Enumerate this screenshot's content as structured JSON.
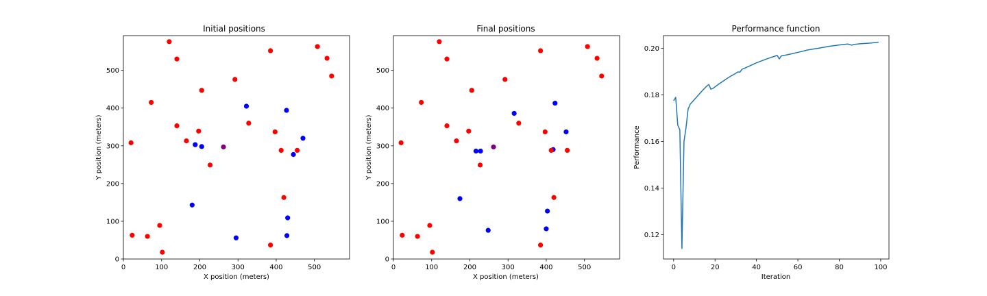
{
  "colors": {
    "sensor": "#ff0000",
    "agent": "#0000ff",
    "overlap": "#800080",
    "line": "#1f77b4"
  },
  "chart_data": [
    {
      "type": "scatter",
      "title": "Initial positions",
      "xlabel": "X position (meters)",
      "ylabel": "Y position (meters)",
      "xlim": [
        0,
        592
      ],
      "ylim": [
        0,
        592
      ],
      "xticks": [
        0,
        100,
        200,
        300,
        400,
        500
      ],
      "yticks": [
        0,
        100,
        200,
        300,
        400,
        500
      ],
      "series": [
        {
          "color": "#ff0000",
          "points": [
            [
              120,
              576
            ],
            [
              140,
              530
            ],
            [
              385,
              552
            ],
            [
              508,
              563
            ],
            [
              533,
              532
            ],
            [
              545,
              485
            ],
            [
              73,
              415
            ],
            [
              205,
              447
            ],
            [
              292,
              476
            ],
            [
              20,
              308
            ],
            [
              140,
              353
            ],
            [
              165,
              313
            ],
            [
              197,
              339
            ],
            [
              328,
              360
            ],
            [
              397,
              337
            ],
            [
              413,
              288
            ],
            [
              455,
              288
            ],
            [
              227,
              249
            ],
            [
              23,
              63
            ],
            [
              63,
              60
            ],
            [
              95,
              89
            ],
            [
              102,
              18
            ],
            [
              420,
              163
            ],
            [
              385,
              37
            ]
          ]
        },
        {
          "color": "#0000ff",
          "points": [
            [
              322,
              405
            ],
            [
              427,
              394
            ],
            [
              470,
              320
            ],
            [
              445,
              277
            ],
            [
              188,
              303
            ],
            [
              205,
              298
            ],
            [
              180,
              143
            ],
            [
              295,
              56
            ],
            [
              430,
              109
            ],
            [
              428,
              62
            ]
          ]
        },
        {
          "color": "#800080",
          "points": [
            [
              262,
              297
            ]
          ]
        }
      ]
    },
    {
      "type": "scatter",
      "title": "Final positions",
      "xlabel": "X position (meters)",
      "ylabel": "Y position (meters)",
      "xlim": [
        0,
        592
      ],
      "ylim": [
        0,
        592
      ],
      "xticks": [
        0,
        100,
        200,
        300,
        400,
        500
      ],
      "yticks": [
        0,
        100,
        200,
        300,
        400,
        500
      ],
      "series": [
        {
          "color": "#0000ff",
          "points": [
            [
              316,
              386
            ],
            [
              423,
              413
            ],
            [
              452,
              337
            ],
            [
              418,
              290
            ],
            [
              216,
              286
            ],
            [
              228,
              286
            ],
            [
              174,
              160
            ],
            [
              248,
              76
            ],
            [
              403,
              127
            ],
            [
              400,
              80
            ]
          ]
        },
        {
          "color": "#ff0000",
          "points": [
            [
              120,
              576
            ],
            [
              140,
              530
            ],
            [
              385,
              552
            ],
            [
              508,
              563
            ],
            [
              533,
              532
            ],
            [
              545,
              485
            ],
            [
              73,
              415
            ],
            [
              205,
              447
            ],
            [
              292,
              476
            ],
            [
              20,
              308
            ],
            [
              140,
              353
            ],
            [
              165,
              313
            ],
            [
              197,
              339
            ],
            [
              328,
              360
            ],
            [
              397,
              337
            ],
            [
              413,
              288
            ],
            [
              455,
              288
            ],
            [
              227,
              249
            ],
            [
              23,
              63
            ],
            [
              63,
              60
            ],
            [
              95,
              89
            ],
            [
              102,
              18
            ],
            [
              420,
              163
            ],
            [
              385,
              37
            ]
          ]
        },
        {
          "color": "#800080",
          "points": [
            [
              262,
              297
            ]
          ]
        }
      ]
    },
    {
      "type": "line",
      "title": "Performance function",
      "xlabel": "Iteration",
      "ylabel": "Performance",
      "xlim": [
        -4.9,
        104
      ],
      "ylim": [
        0.1095,
        0.2055
      ],
      "xticks": [
        0,
        20,
        40,
        60,
        80,
        100
      ],
      "yticks": [
        0.12,
        0.14,
        0.16,
        0.18,
        0.2
      ],
      "ytick_labels": [
        "0.12",
        "0.14",
        "0.16",
        "0.18",
        "0.20"
      ],
      "series": [
        {
          "color": "#1f77b4",
          "x": [
            0,
            1,
            2,
            3,
            4,
            5,
            6,
            7,
            8,
            10,
            12,
            14,
            16,
            17,
            18,
            19,
            20,
            22,
            24,
            26,
            28,
            30,
            31,
            32,
            33,
            35,
            40,
            45,
            50,
            51,
            52,
            55,
            60,
            65,
            70,
            75,
            80,
            84,
            85,
            86,
            87,
            90,
            95,
            99
          ],
          "y": [
            0.1775,
            0.179,
            0.167,
            0.165,
            0.114,
            0.16,
            0.166,
            0.174,
            0.176,
            0.178,
            0.18,
            0.182,
            0.1838,
            0.1845,
            0.1825,
            0.1828,
            0.1835,
            0.1848,
            0.186,
            0.1872,
            0.1883,
            0.1893,
            0.1899,
            0.1898,
            0.191,
            0.1918,
            0.1938,
            0.1955,
            0.197,
            0.1955,
            0.1968,
            0.1973,
            0.1983,
            0.1994,
            0.2001,
            0.2009,
            0.2015,
            0.2019,
            0.2017,
            0.2014,
            0.2017,
            0.202,
            0.2023,
            0.2027
          ]
        }
      ]
    }
  ]
}
